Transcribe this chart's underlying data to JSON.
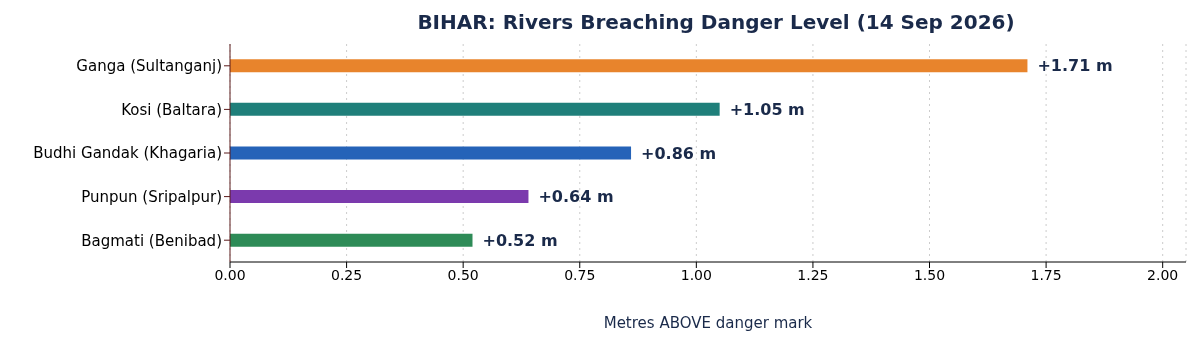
{
  "chart_data": {
    "type": "bar",
    "orientation": "horizontal",
    "title": "BIHAR: Rivers Breaching Danger Level (14 Sep 2026)",
    "xlabel": "Metres ABOVE danger mark",
    "categories": [
      "Ganga (Sultanganj)",
      "Kosi (Baltara)",
      "Budhi Gandak (Khagaria)",
      "Punpun (Sripalpur)",
      "Bagmati (Benibad)"
    ],
    "values": [
      1.71,
      1.05,
      0.86,
      0.64,
      0.52
    ],
    "colors": [
      "#e8842c",
      "#1f7f7a",
      "#2563b8",
      "#7b3aad",
      "#2e8b57"
    ],
    "value_labels": [
      "+1.71 m",
      "+1.05 m",
      "+0.86 m",
      "+0.64 m",
      "+0.52 m"
    ],
    "xlim": [
      0,
      2.05
    ],
    "xticks": [
      {
        "value": 0,
        "label": "0.00"
      },
      {
        "value": 0.25,
        "label": "0.25"
      },
      {
        "value": 0.5,
        "label": "0.50"
      },
      {
        "value": 0.75,
        "label": "0.75"
      },
      {
        "value": 1,
        "label": "1.00"
      },
      {
        "value": 1.25,
        "label": "1.25"
      },
      {
        "value": 1.5,
        "label": "1.50"
      },
      {
        "value": 1.75,
        "label": "1.75"
      },
      {
        "value": 2,
        "label": "2.00"
      }
    ],
    "grid": "x"
  }
}
